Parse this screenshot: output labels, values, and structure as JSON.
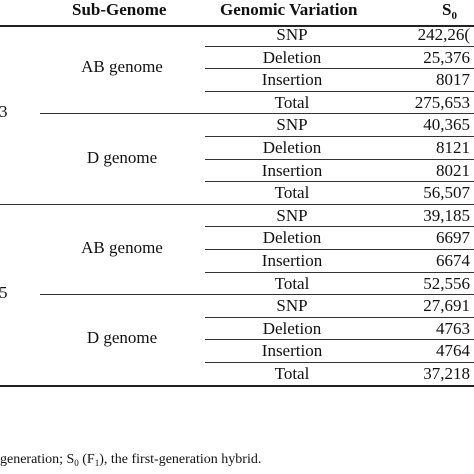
{
  "header": {
    "sub_genome": "Sub-Genome",
    "genomic_variation": "Genomic Variation",
    "s0_main": "S",
    "s0_sub": "0"
  },
  "groups": [
    {
      "row_label": "3",
      "subgenomes": [
        {
          "name": "AB genome",
          "rows": [
            {
              "variation": "SNP",
              "value": "242,26("
            },
            {
              "variation": "Deletion",
              "value": "25,376"
            },
            {
              "variation": "Insertion",
              "value": "8017"
            },
            {
              "variation": "Total",
              "value": "275,653"
            }
          ]
        },
        {
          "name": "D genome",
          "rows": [
            {
              "variation": "SNP",
              "value": "40,365"
            },
            {
              "variation": "Deletion",
              "value": "8121"
            },
            {
              "variation": "Insertion",
              "value": "8021"
            },
            {
              "variation": "Total",
              "value": "56,507"
            }
          ]
        }
      ]
    },
    {
      "row_label": "5",
      "subgenomes": [
        {
          "name": "AB genome",
          "rows": [
            {
              "variation": "SNP",
              "value": "39,185"
            },
            {
              "variation": "Deletion",
              "value": "6697"
            },
            {
              "variation": "Insertion",
              "value": "6674"
            },
            {
              "variation": "Total",
              "value": "52,556"
            }
          ]
        },
        {
          "name": "D genome",
          "rows": [
            {
              "variation": "SNP",
              "value": "27,691"
            },
            {
              "variation": "Deletion",
              "value": "4763"
            },
            {
              "variation": "Insertion",
              "value": "4764"
            },
            {
              "variation": "Total",
              "value": "37,218"
            }
          ]
        }
      ]
    }
  ],
  "footnote": {
    "part1": "generation; S",
    "part1_sub": "0",
    "part2": " (F",
    "part2_sub": "1",
    "part3": "), the first-generation hybrid."
  }
}
